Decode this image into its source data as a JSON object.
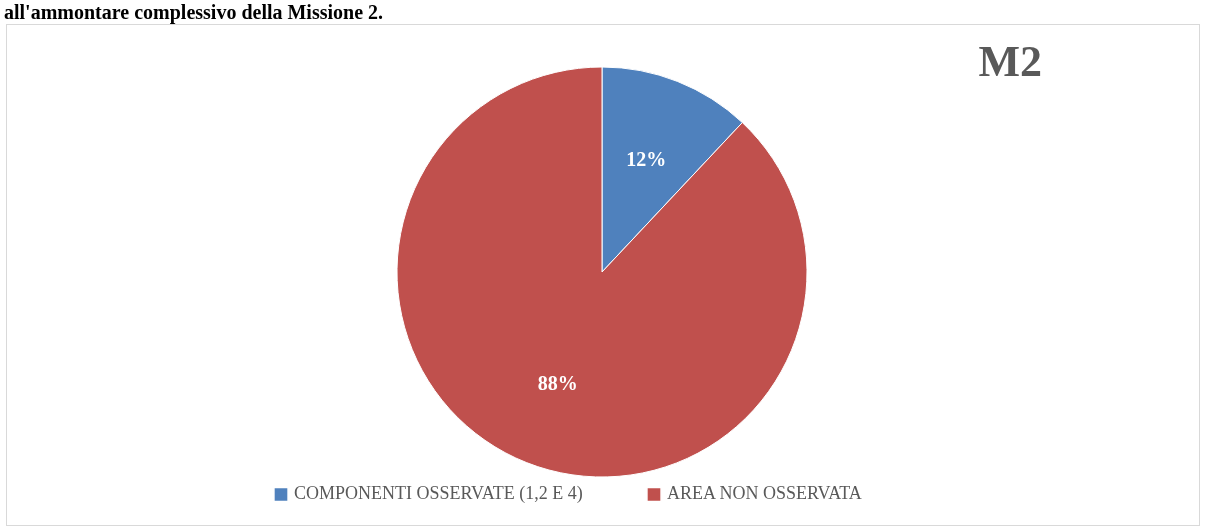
{
  "chart_data": {
    "type": "pie",
    "title": "M2",
    "annotations": [
      "all'ammontare complessivo della Missione 2."
    ],
    "categories": [
      "COMPONENTI OSSERVATE (1,2 E 4)",
      "AREA NON OSSERVATA"
    ],
    "values": [
      12,
      88
    ],
    "value_labels": [
      "12%",
      "88%"
    ],
    "colors": [
      "#4f81bd",
      "#c0504d"
    ],
    "legend": "bottom"
  }
}
